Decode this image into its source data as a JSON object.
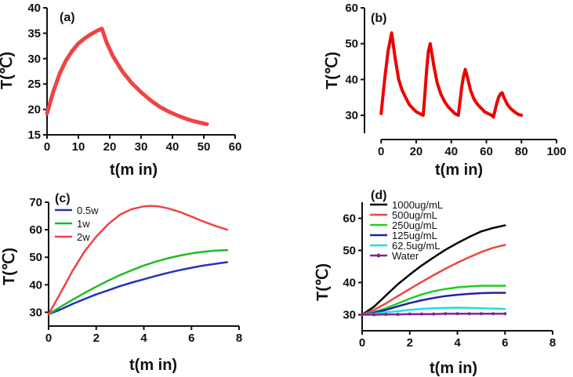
{
  "chart_data": [
    {
      "type": "line",
      "panel_label": "(a)",
      "xlabel": "t(m in)",
      "ylabel": "T(℃)",
      "xlim": [
        0,
        60
      ],
      "ylim": [
        15,
        40
      ],
      "xticks": [
        "0",
        "10",
        "20",
        "30",
        "40",
        "50",
        "60"
      ],
      "yticks": [
        "15",
        "20",
        "25",
        "30",
        "35",
        "40"
      ],
      "series": [
        {
          "name": "a",
          "color": "#ee4444",
          "x": [
            0,
            2,
            4,
            6,
            8,
            10,
            12,
            14,
            16,
            17.5,
            19,
            21,
            24,
            27,
            30,
            33,
            36,
            39,
            42,
            45,
            48,
            51
          ],
          "y": [
            19.2,
            23.5,
            27,
            29.6,
            31.5,
            33,
            34,
            34.8,
            35.5,
            35.9,
            33.2,
            30.5,
            27.5,
            25.2,
            23.4,
            21.8,
            20.5,
            19.5,
            18.7,
            18,
            17.5,
            17.1
          ]
        }
      ]
    },
    {
      "type": "line",
      "panel_label": "(b)",
      "xlabel": "t(m in)",
      "ylabel": "T(℃)",
      "xlim": [
        -5,
        100
      ],
      "ylim": [
        25,
        60
      ],
      "xticks": [
        "0",
        "20",
        "40",
        "60",
        "80",
        "100"
      ],
      "yticks": [
        "30",
        "40",
        "50",
        "60"
      ],
      "series": [
        {
          "name": "b",
          "color": "#ee0000",
          "x": [
            0,
            2,
            4,
            6,
            8,
            10,
            12,
            14,
            16,
            18,
            20,
            22,
            24,
            25,
            26,
            27,
            28,
            30,
            32,
            34,
            36,
            38,
            40,
            42,
            44,
            45,
            46,
            47,
            48,
            49,
            51,
            53,
            55,
            57,
            59,
            61,
            63,
            64,
            65,
            66,
            67,
            68,
            69,
            70,
            72,
            74,
            76,
            78,
            80
          ],
          "y": [
            30.5,
            40,
            48,
            53,
            46,
            40,
            37,
            35,
            33,
            32,
            31,
            30.5,
            30,
            36,
            43,
            48,
            50,
            44,
            39,
            36,
            34,
            32.5,
            31.5,
            30.5,
            30,
            34,
            38,
            41,
            42.8,
            41,
            37,
            34.5,
            33,
            32,
            31,
            30.5,
            30,
            29.5,
            31.5,
            33.5,
            35,
            36,
            36.3,
            35,
            33,
            31.8,
            31,
            30.3,
            30
          ]
        }
      ]
    },
    {
      "type": "line",
      "panel_label": "(c)",
      "xlabel": "t(m in)",
      "ylabel": "T(℃)",
      "xlim": [
        0,
        8
      ],
      "ylim": [
        25,
        70
      ],
      "xticks": [
        "0",
        "2",
        "4",
        "6",
        "8"
      ],
      "yticks": [
        "30",
        "40",
        "50",
        "60",
        "70"
      ],
      "legend_entries": [
        "0.5w",
        "1w",
        "2w"
      ],
      "series": [
        {
          "name": "0.5w",
          "color": "#2233bb",
          "x": [
            0,
            0.5,
            1,
            1.5,
            2,
            2.5,
            3,
            3.5,
            4,
            4.5,
            5,
            5.5,
            6,
            6.5,
            7,
            7.5
          ],
          "y": [
            29.3,
            31,
            33,
            34.8,
            36.5,
            38,
            39.5,
            40.8,
            42,
            43.2,
            44.3,
            45.3,
            46.2,
            47,
            47.6,
            48.2
          ]
        },
        {
          "name": "1w",
          "color": "#22bb22",
          "x": [
            0,
            0.5,
            1,
            1.5,
            2,
            2.5,
            3,
            3.5,
            4,
            4.5,
            5,
            5.5,
            6,
            6.5,
            7,
            7.5
          ],
          "y": [
            29.3,
            32,
            34.5,
            37,
            39.3,
            41.5,
            43.5,
            45.3,
            47,
            48.4,
            49.6,
            50.6,
            51.4,
            52,
            52.4,
            52.6
          ]
        },
        {
          "name": "2w",
          "color": "#ee4444",
          "x": [
            0,
            0.5,
            1,
            1.5,
            2,
            2.5,
            3,
            3.5,
            4,
            4.3,
            4.6,
            5,
            5.5,
            6,
            6.5,
            7,
            7.5
          ],
          "y": [
            29.3,
            37,
            45,
            52,
            57.5,
            62,
            65.5,
            67.5,
            68.5,
            68.7,
            68.5,
            67.8,
            66.5,
            64.8,
            63,
            61.4,
            60
          ]
        }
      ]
    },
    {
      "type": "line",
      "panel_label": "(d)",
      "xlabel": "t(m in)",
      "ylabel": "T(℃)",
      "xlim": [
        0,
        8
      ],
      "ylim": [
        25,
        65
      ],
      "xticks": [
        "0",
        "2",
        "4",
        "6",
        "8"
      ],
      "yticks": [
        "30",
        "40",
        "50",
        "60"
      ],
      "legend_entries": [
        "1000ug/mL",
        "500ug/mL",
        "250ug/mL",
        "125ug/mL",
        "62.5ug/mL",
        "Water"
      ],
      "series": [
        {
          "name": "1000ug/mL",
          "color": "#000000",
          "x": [
            0,
            0.5,
            1,
            1.5,
            2,
            2.5,
            3,
            3.5,
            4,
            4.5,
            5,
            5.5,
            6
          ],
          "y": [
            30,
            32.5,
            36,
            39.5,
            42.5,
            45.3,
            47.8,
            50.2,
            52.3,
            54.2,
            55.9,
            57,
            57.8
          ]
        },
        {
          "name": "500ug/mL",
          "color": "#ee4444",
          "x": [
            0,
            0.5,
            1,
            1.5,
            2,
            2.5,
            3,
            3.5,
            4,
            4.5,
            5,
            5.5,
            6
          ],
          "y": [
            30,
            31.5,
            33.5,
            35.8,
            38,
            40.2,
            42.3,
            44.3,
            46.2,
            47.9,
            49.5,
            50.8,
            51.7
          ]
        },
        {
          "name": "250ug/mL",
          "color": "#22cc22",
          "x": [
            0,
            0.5,
            1,
            1.5,
            2,
            2.5,
            3,
            3.5,
            4,
            4.5,
            5,
            5.5,
            6
          ],
          "y": [
            30,
            30.8,
            32,
            33.5,
            35,
            36.3,
            37.3,
            38,
            38.5,
            38.8,
            39,
            39,
            39
          ]
        },
        {
          "name": "125ug/mL",
          "color": "#2222aa",
          "x": [
            0,
            0.5,
            1,
            1.5,
            2,
            2.5,
            3,
            3.5,
            4,
            4.5,
            5,
            5.5,
            6
          ],
          "y": [
            30,
            30.6,
            31.5,
            32.6,
            33.6,
            34.5,
            35.2,
            35.8,
            36.2,
            36.5,
            36.7,
            36.8,
            36.8
          ]
        },
        {
          "name": "62.5ug/mL",
          "color": "#22dddd",
          "x": [
            0,
            0.5,
            1,
            1.5,
            2,
            2.5,
            3,
            3.5,
            4,
            4.5,
            5,
            5.5,
            6
          ],
          "y": [
            30,
            30.3,
            30.7,
            31.1,
            31.5,
            31.8,
            32,
            32.1,
            32.2,
            32.1,
            32,
            31.9,
            31.8
          ]
        },
        {
          "name": "Water",
          "color": "#882299",
          "x": [
            0,
            0.5,
            1,
            1.5,
            2,
            2.5,
            3,
            3.5,
            4,
            4.5,
            5,
            5.5,
            6
          ],
          "y": [
            30,
            30,
            30.1,
            30.1,
            30.2,
            30.2,
            30.2,
            30.3,
            30.3,
            30.3,
            30.3,
            30.3,
            30.3
          ]
        }
      ]
    }
  ]
}
